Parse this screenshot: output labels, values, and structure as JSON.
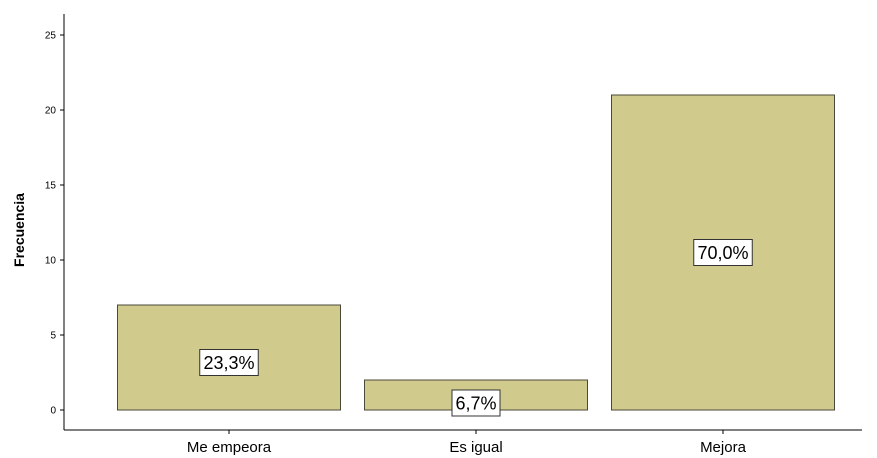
{
  "chart_data": {
    "type": "bar",
    "categories": [
      "Me empeora",
      "Es igual",
      "Mejora"
    ],
    "values": [
      7,
      2,
      21
    ],
    "data_labels": [
      "23,3%",
      "6,7%",
      "70,0%"
    ],
    "title": "",
    "xlabel": "",
    "ylabel": "Frecuencia",
    "ylim": [
      0,
      25
    ],
    "yticks": [
      0,
      5,
      10,
      15,
      20,
      25
    ],
    "ytick_labels": [
      "0",
      "5",
      "10",
      "15",
      "20",
      "25"
    ],
    "grid": false,
    "legend": "none",
    "bar_color": "#d0ca8d"
  }
}
